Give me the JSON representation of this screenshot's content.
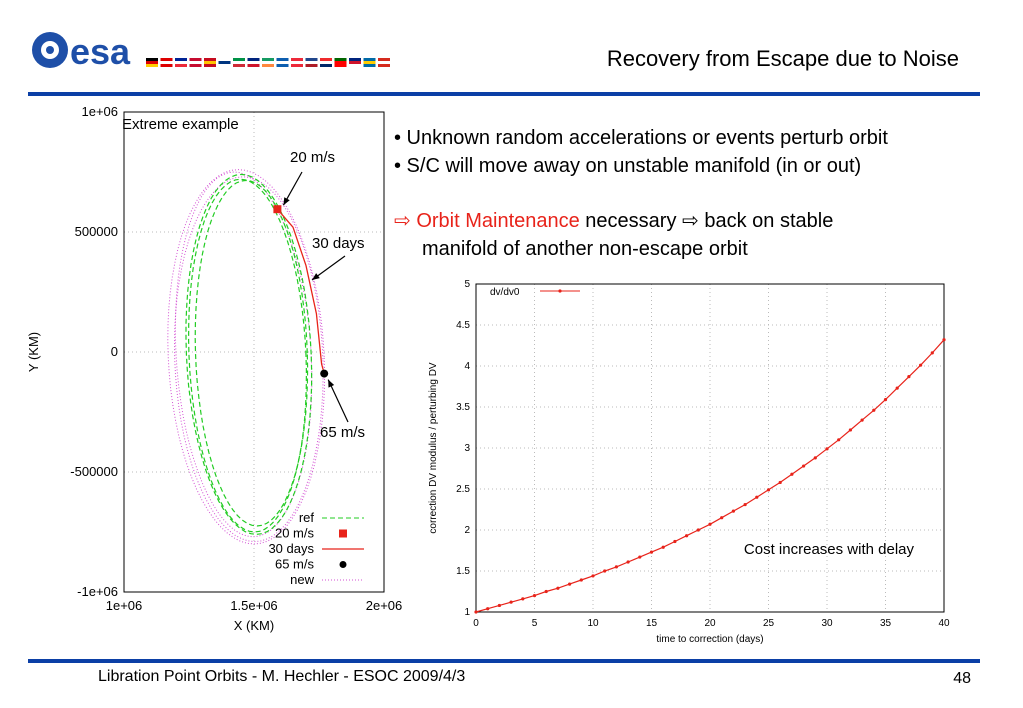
{
  "header": {
    "logo_text": "esa",
    "title": "Recovery from Escape due to Noise"
  },
  "colors": {
    "brand_blue": "#0b3fa6",
    "accent_red": "#e8231a",
    "ref_green": "#22cc22",
    "new_magenta": "#d34fd3"
  },
  "bullets": [
    "• Unknown random accelerations or events perturb orbit",
    "• S/C will move away on unstable manifold (in or out)"
  ],
  "maintenance": {
    "arrow1": "⇨",
    "lead": "Orbit Maintenance",
    "rest1": " necessary ",
    "arrow2": "⇨",
    "rest2": " back on stable",
    "line2": "manifold of another non-escape orbit"
  },
  "footer": {
    "left": "Libration Point Orbits -  M. Hechler - ESOC 2009/4/3",
    "page": "48"
  },
  "chart_data": [
    {
      "type": "line",
      "title": "",
      "corner_label": "Extreme example",
      "xlabel": "X (KM)",
      "ylabel": "Y (KM)",
      "xlim": [
        1000000,
        2000000
      ],
      "ylim": [
        -1000000,
        1000000
      ],
      "xticks": [
        "1e+06",
        "1.5e+06",
        "2e+06"
      ],
      "yticks": [
        "1e+06",
        "500000",
        "0",
        "-500000",
        "-1e+06"
      ],
      "grid": true,
      "legend_position": "bottom-right",
      "series": [
        {
          "name": "ref",
          "style": "dashed",
          "color": "#22cc22"
        },
        {
          "name": "20 m/s",
          "style": "marker-square",
          "color": "#e8231a",
          "points": [
            [
              1590000,
              595000
            ]
          ]
        },
        {
          "name": "30 days",
          "style": "solid",
          "color": "#e8231a",
          "points": [
            [
              1590000,
              595000
            ],
            [
              1650000,
              520000
            ],
            [
              1700000,
              360000
            ],
            [
              1740000,
              160000
            ],
            [
              1760000,
              -50000
            ],
            [
              1770000,
              -90000
            ]
          ]
        },
        {
          "name": "65 m/s",
          "style": "marker-circle",
          "color": "#000000",
          "points": [
            [
              1770000,
              -90000
            ]
          ]
        },
        {
          "name": "new",
          "style": "dotted",
          "color": "#d34fd3"
        }
      ],
      "annotations": [
        "20 m/s",
        "30 days",
        "65 m/s"
      ]
    },
    {
      "type": "line",
      "title": "",
      "xlabel": "time to correction (days)",
      "ylabel": "correction DV modulus / perturbing DV",
      "xlim": [
        0,
        40
      ],
      "ylim": [
        1,
        5
      ],
      "xticks": [
        "0",
        "5",
        "10",
        "15",
        "20",
        "25",
        "30",
        "35",
        "40"
      ],
      "yticks": [
        "1",
        "1.5",
        "2",
        "2.5",
        "3",
        "3.5",
        "4",
        "4.5",
        "5"
      ],
      "grid": true,
      "legend_position": "top-left",
      "annotation": "Cost increases with delay",
      "series": [
        {
          "name": "dv/dv0",
          "color": "#e8231a",
          "x": [
            0,
            1,
            2,
            3,
            4,
            5,
            6,
            7,
            8,
            9,
            10,
            11,
            12,
            13,
            14,
            15,
            16,
            17,
            18,
            19,
            20,
            21,
            22,
            23,
            24,
            25,
            26,
            27,
            28,
            29,
            30,
            31,
            32,
            33,
            34,
            35,
            36,
            37,
            38,
            39,
            40
          ],
          "values": [
            1.0,
            1.04,
            1.08,
            1.12,
            1.16,
            1.2,
            1.25,
            1.29,
            1.34,
            1.39,
            1.44,
            1.5,
            1.55,
            1.61,
            1.67,
            1.73,
            1.79,
            1.86,
            1.93,
            2.0,
            2.07,
            2.15,
            2.23,
            2.31,
            2.4,
            2.49,
            2.58,
            2.68,
            2.78,
            2.88,
            2.99,
            3.1,
            3.22,
            3.34,
            3.46,
            3.59,
            3.73,
            3.87,
            4.01,
            4.16,
            4.32
          ]
        }
      ]
    }
  ]
}
